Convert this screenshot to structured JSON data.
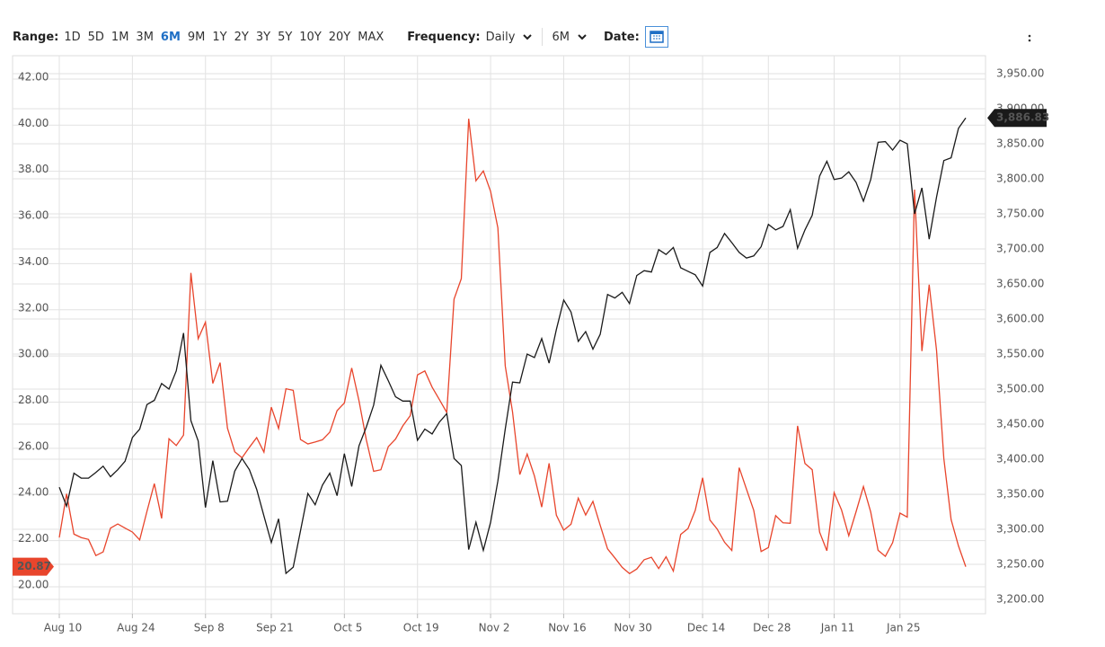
{
  "toolbar": {
    "range_label": "Range:",
    "range_options": [
      "1D",
      "5D",
      "1M",
      "3M",
      "6M",
      "9M",
      "1Y",
      "2Y",
      "3Y",
      "5Y",
      "10Y",
      "20Y",
      "MAX"
    ],
    "range_active": "6M",
    "frequency_label": "Frequency:",
    "frequency": "Daily",
    "period": "6M",
    "date_label": "Date:"
  },
  "chart_data": {
    "type": "line",
    "categories": [
      "Aug 10",
      null,
      null,
      null,
      null,
      null,
      null,
      null,
      null,
      null,
      "Aug 24",
      null,
      null,
      null,
      null,
      null,
      null,
      null,
      null,
      null,
      "Sep 8",
      null,
      null,
      null,
      null,
      null,
      null,
      null,
      null,
      "Sep 21",
      null,
      null,
      null,
      null,
      null,
      null,
      null,
      null,
      null,
      "Oct 5",
      null,
      null,
      null,
      null,
      null,
      null,
      null,
      null,
      null,
      "Oct 19",
      null,
      null,
      null,
      null,
      null,
      null,
      null,
      null,
      null,
      "Nov 2",
      null,
      null,
      null,
      null,
      null,
      null,
      null,
      null,
      null,
      "Nov 16",
      null,
      null,
      null,
      null,
      null,
      null,
      null,
      null,
      "Nov 30",
      null,
      null,
      null,
      null,
      null,
      null,
      null,
      null,
      null,
      "Dec 14",
      null,
      null,
      null,
      null,
      null,
      null,
      null,
      null,
      "Dec 28",
      null,
      null,
      null,
      null,
      null,
      null,
      null,
      null,
      "Jan 11",
      null,
      null,
      null,
      null,
      null,
      null,
      null,
      null,
      "Jan 25",
      null,
      null,
      null,
      null,
      null,
      null,
      null,
      null,
      null
    ],
    "series": [
      {
        "color": "#1a1a1a",
        "axis": "y2",
        "end_label": "3,886.83",
        "values": [
          3360,
          3333,
          3380,
          3373,
          3373,
          3381,
          3390,
          3375,
          3385,
          3397,
          3431,
          3443,
          3478,
          3484,
          3508,
          3500,
          3526,
          3580,
          3455,
          3426,
          3331,
          3398,
          3339,
          3340,
          3383,
          3401,
          3385,
          3357,
          3319,
          3281,
          3315,
          3237,
          3246,
          3298,
          3351,
          3335,
          3363,
          3380,
          3348,
          3408,
          3361,
          3419,
          3446,
          3477,
          3534,
          3512,
          3489,
          3483,
          3483,
          3427,
          3443,
          3436,
          3453,
          3465,
          3401,
          3391,
          3271,
          3310,
          3270,
          3310,
          3369,
          3443,
          3510,
          3509,
          3550,
          3545,
          3572,
          3537,
          3585,
          3627,
          3610,
          3568,
          3582,
          3557,
          3578,
          3635,
          3630,
          3638,
          3622,
          3662,
          3669,
          3667,
          3699,
          3692,
          3702,
          3673,
          3668,
          3663,
          3647,
          3695,
          3702,
          3722,
          3709,
          3695,
          3687,
          3690,
          3703,
          3735,
          3727,
          3732,
          3756,
          3701,
          3727,
          3748,
          3804,
          3825,
          3799,
          3801,
          3810,
          3795,
          3768,
          3799,
          3852,
          3853,
          3841,
          3855,
          3850,
          3750,
          3787,
          3714,
          3774,
          3826,
          3830,
          3872,
          3886.83
        ]
      },
      {
        "color": "#e8452c",
        "axis": "y",
        "end_label": "20.87",
        "values": [
          22.13,
          24.03,
          22.28,
          22.13,
          22.05,
          21.35,
          21.51,
          22.54,
          22.72,
          22.54,
          22.37,
          22.03,
          23.27,
          24.47,
          22.96,
          26.41,
          26.12,
          26.57,
          33.6,
          30.75,
          31.46,
          28.81,
          29.71,
          26.87,
          25.85,
          25.59,
          26.04,
          26.46,
          25.83,
          27.78,
          26.86,
          28.58,
          28.51,
          26.38,
          26.19,
          26.27,
          26.37,
          26.7,
          27.63,
          27.96,
          29.48,
          28.06,
          26.36,
          25.0,
          25.07,
          26.07,
          26.4,
          26.97,
          27.41,
          29.18,
          29.35,
          28.65,
          28.11,
          27.55,
          32.46,
          33.35,
          40.28,
          37.59,
          38.02,
          37.13,
          35.55,
          29.57,
          27.58,
          24.86,
          25.75,
          24.8,
          23.45,
          25.35,
          23.1,
          22.45,
          22.71,
          23.84,
          23.11,
          23.7,
          22.66,
          21.64,
          21.25,
          20.84,
          20.57,
          20.77,
          21.17,
          21.28,
          20.79,
          21.3,
          20.68,
          22.27,
          22.52,
          23.31,
          24.72,
          22.89,
          22.5,
          21.93,
          21.57,
          25.16,
          24.23,
          23.31,
          21.53,
          21.7,
          23.08,
          22.77,
          22.75,
          26.97,
          25.34,
          25.07,
          22.37,
          21.56,
          24.08,
          23.33,
          22.21,
          23.25,
          24.34,
          23.24,
          21.58,
          21.32,
          21.91,
          23.19,
          23.02,
          37.21,
          30.21,
          33.09,
          30.24,
          25.56,
          22.91,
          21.77,
          20.87
        ]
      }
    ],
    "ylim": [
      18.83,
      43.01
    ],
    "yticks": [
      {
        "value": 20,
        "label": "20.00"
      },
      {
        "value": 22,
        "label": "22.00"
      },
      {
        "value": 24,
        "label": "24.00"
      },
      {
        "value": 26,
        "label": "26.00"
      },
      {
        "value": 28,
        "label": "28.00"
      },
      {
        "value": 30,
        "label": "30.00"
      },
      {
        "value": 32,
        "label": "32.00"
      },
      {
        "value": 34,
        "label": "34.00"
      },
      {
        "value": 36,
        "label": "36.00"
      },
      {
        "value": 38,
        "label": "38.00"
      },
      {
        "value": 40,
        "label": "40.00"
      },
      {
        "value": 42,
        "label": "42.00"
      }
    ],
    "y2lim": [
      3179.5,
      3975.6
    ],
    "y2ticks": [
      {
        "value": 3200,
        "label": "3,200.00"
      },
      {
        "value": 3250,
        "label": "3,250.00"
      },
      {
        "value": 3300,
        "label": "3,300.00"
      },
      {
        "value": 3350,
        "label": "3,350.00"
      },
      {
        "value": 3400,
        "label": "3,400.00"
      },
      {
        "value": 3450,
        "label": "3,450.00"
      },
      {
        "value": 3500,
        "label": "3,500.00"
      },
      {
        "value": 3550,
        "label": "3,550.00"
      },
      {
        "value": 3600,
        "label": "3,600.00"
      },
      {
        "value": 3650,
        "label": "3,650.00"
      },
      {
        "value": 3700,
        "label": "3,700.00"
      },
      {
        "value": 3750,
        "label": "3,750.00"
      },
      {
        "value": 3800,
        "label": "3,800.00"
      },
      {
        "value": 3850,
        "label": "3,850.00"
      },
      {
        "value": 3900,
        "label": "3,900.00"
      },
      {
        "value": 3950,
        "label": "3,950.00"
      }
    ],
    "grid": true
  }
}
